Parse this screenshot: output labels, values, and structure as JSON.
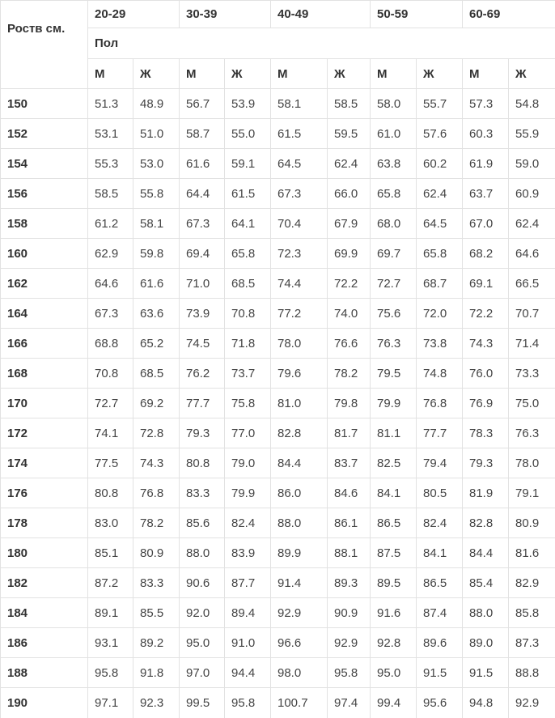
{
  "table": {
    "corner_label": "Роств см.",
    "sex_label": "Пол",
    "age_groups": [
      "20-29",
      "30-39",
      "40-49",
      "50-59",
      "60-69"
    ],
    "sex_headers": [
      "М",
      "Ж",
      "М",
      "Ж",
      "М",
      "Ж",
      "М",
      "Ж",
      "М",
      "Ж"
    ],
    "rows": [
      {
        "height": "150",
        "values": [
          "51.3",
          "48.9",
          "56.7",
          "53.9",
          "58.1",
          "58.5",
          "58.0",
          "55.7",
          "57.3",
          "54.8"
        ]
      },
      {
        "height": "152",
        "values": [
          "53.1",
          "51.0",
          "58.7",
          "55.0",
          "61.5",
          "59.5",
          "61.0",
          "57.6",
          "60.3",
          "55.9"
        ]
      },
      {
        "height": "154",
        "values": [
          "55.3",
          "53.0",
          "61.6",
          "59.1",
          "64.5",
          "62.4",
          "63.8",
          "60.2",
          "61.9",
          "59.0"
        ]
      },
      {
        "height": "156",
        "values": [
          "58.5",
          "55.8",
          "64.4",
          "61.5",
          "67.3",
          "66.0",
          "65.8",
          "62.4",
          "63.7",
          "60.9"
        ]
      },
      {
        "height": "158",
        "values": [
          "61.2",
          "58.1",
          "67.3",
          "64.1",
          "70.4",
          "67.9",
          "68.0",
          "64.5",
          "67.0",
          "62.4"
        ]
      },
      {
        "height": "160",
        "values": [
          "62.9",
          "59.8",
          "69.4",
          "65.8",
          "72.3",
          "69.9",
          "69.7",
          "65.8",
          "68.2",
          "64.6"
        ]
      },
      {
        "height": "162",
        "values": [
          "64.6",
          "61.6",
          "71.0",
          "68.5",
          "74.4",
          "72.2",
          "72.7",
          "68.7",
          "69.1",
          "66.5"
        ]
      },
      {
        "height": "164",
        "values": [
          "67.3",
          "63.6",
          "73.9",
          "70.8",
          "77.2",
          "74.0",
          "75.6",
          "72.0",
          "72.2",
          "70.7"
        ]
      },
      {
        "height": "166",
        "values": [
          "68.8",
          "65.2",
          "74.5",
          "71.8",
          "78.0",
          "76.6",
          "76.3",
          "73.8",
          "74.3",
          "71.4"
        ]
      },
      {
        "height": "168",
        "values": [
          "70.8",
          "68.5",
          "76.2",
          "73.7",
          "79.6",
          "78.2",
          "79.5",
          "74.8",
          "76.0",
          "73.3"
        ]
      },
      {
        "height": "170",
        "values": [
          "72.7",
          "69.2",
          "77.7",
          "75.8",
          "81.0",
          "79.8",
          "79.9",
          "76.8",
          "76.9",
          "75.0"
        ]
      },
      {
        "height": "172",
        "values": [
          "74.1",
          "72.8",
          "79.3",
          "77.0",
          "82.8",
          "81.7",
          "81.1",
          "77.7",
          "78.3",
          "76.3"
        ]
      },
      {
        "height": "174",
        "values": [
          "77.5",
          "74.3",
          "80.8",
          "79.0",
          "84.4",
          "83.7",
          "82.5",
          "79.4",
          "79.3",
          "78.0"
        ]
      },
      {
        "height": "176",
        "values": [
          "80.8",
          "76.8",
          "83.3",
          "79.9",
          "86.0",
          "84.6",
          "84.1",
          "80.5",
          "81.9",
          "79.1"
        ]
      },
      {
        "height": "178",
        "values": [
          "83.0",
          "78.2",
          "85.6",
          "82.4",
          "88.0",
          "86.1",
          "86.5",
          "82.4",
          "82.8",
          "80.9"
        ]
      },
      {
        "height": "180",
        "values": [
          "85.1",
          "80.9",
          "88.0",
          "83.9",
          "89.9",
          "88.1",
          "87.5",
          "84.1",
          "84.4",
          "81.6"
        ]
      },
      {
        "height": "182",
        "values": [
          "87.2",
          "83.3",
          "90.6",
          "87.7",
          "91.4",
          "89.3",
          "89.5",
          "86.5",
          "85.4",
          "82.9"
        ]
      },
      {
        "height": "184",
        "values": [
          "89.1",
          "85.5",
          "92.0",
          "89.4",
          "92.9",
          "90.9",
          "91.6",
          "87.4",
          "88.0",
          "85.8"
        ]
      },
      {
        "height": "186",
        "values": [
          "93.1",
          "89.2",
          "95.0",
          "91.0",
          "96.6",
          "92.9",
          "92.8",
          "89.6",
          "89.0",
          "87.3"
        ]
      },
      {
        "height": "188",
        "values": [
          "95.8",
          "91.8",
          "97.0",
          "94.4",
          "98.0",
          "95.8",
          "95.0",
          "91.5",
          "91.5",
          "88.8"
        ]
      },
      {
        "height": "190",
        "values": [
          "97.1",
          "92.3",
          "99.5",
          "95.8",
          "100.7",
          "97.4",
          "99.4",
          "95.6",
          "94.8",
          "92.9"
        ]
      }
    ]
  }
}
